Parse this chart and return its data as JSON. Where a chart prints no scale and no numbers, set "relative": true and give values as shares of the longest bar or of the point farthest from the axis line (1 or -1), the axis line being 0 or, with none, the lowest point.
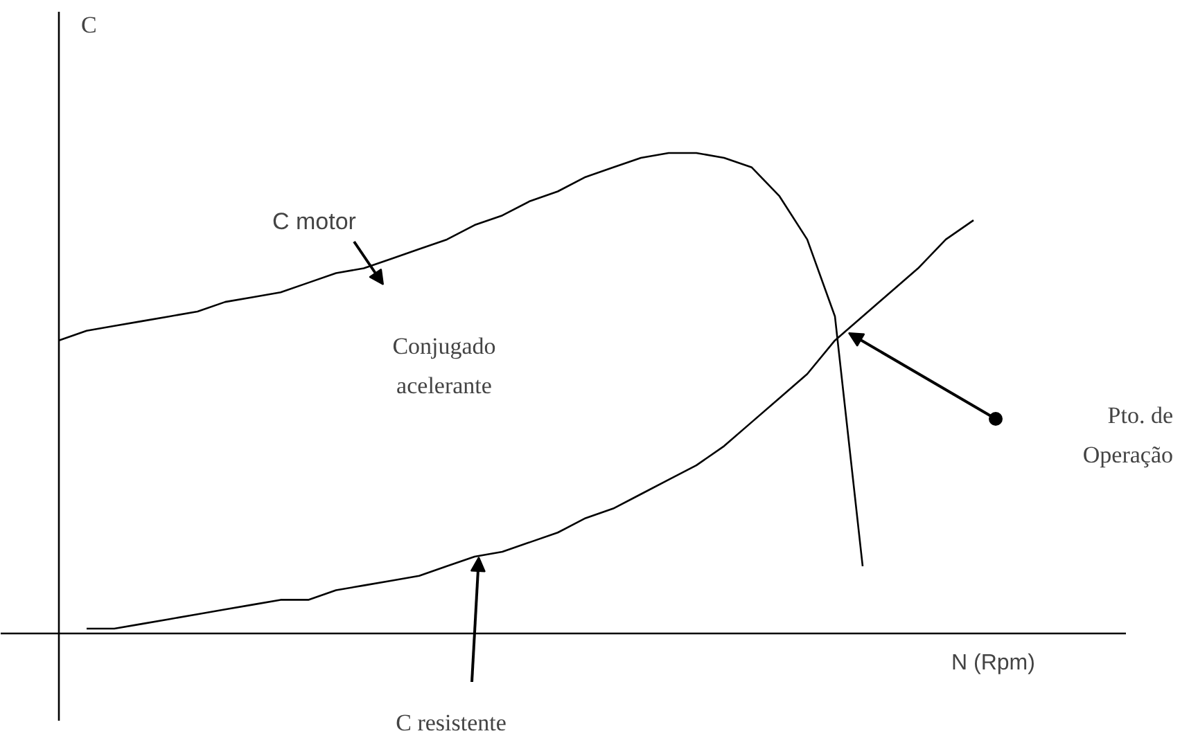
{
  "chart_data": {
    "type": "line",
    "relative": true,
    "xlabel": "N (Rpm)",
    "ylabel": "C",
    "grid": false,
    "marker": "none",
    "line_style": "solid",
    "categories": [
      null,
      null,
      null,
      null,
      null,
      null,
      null,
      null,
      null,
      null,
      null,
      null,
      null,
      null,
      null,
      null,
      null,
      null,
      null,
      null,
      null,
      null,
      null,
      null,
      null,
      null,
      null,
      null,
      null,
      null,
      null,
      null,
      null,
      null,
      null
    ],
    "series": [
      {
        "color": "#000000",
        "values": [
          0.61,
          0.63,
          0.64,
          0.65,
          0.66,
          0.67,
          0.69,
          0.7,
          0.71,
          0.73,
          0.75,
          0.76,
          0.78,
          0.8,
          0.82,
          0.85,
          0.87,
          0.9,
          0.92,
          0.95,
          0.97,
          0.99,
          1.0,
          1.0,
          0.99,
          0.97,
          0.91,
          0.82,
          0.66,
          0.14,
          null,
          null,
          null,
          null,
          null
        ]
      },
      {
        "color": "#000000",
        "values": [
          null,
          0.01,
          0.01,
          0.02,
          0.03,
          0.04,
          0.05,
          0.06,
          0.07,
          0.07,
          0.09,
          0.1,
          0.11,
          0.12,
          0.14,
          0.16,
          0.17,
          0.19,
          0.21,
          0.24,
          0.26,
          0.29,
          0.32,
          0.35,
          0.39,
          0.44,
          0.49,
          0.54,
          0.61,
          0.66,
          0.71,
          0.76,
          0.82,
          0.86,
          null
        ]
      }
    ],
    "annotations": [
      "C motor",
      "Conjugado\nacelerante",
      "C resistente",
      "Pto. de\nOperação"
    ]
  }
}
